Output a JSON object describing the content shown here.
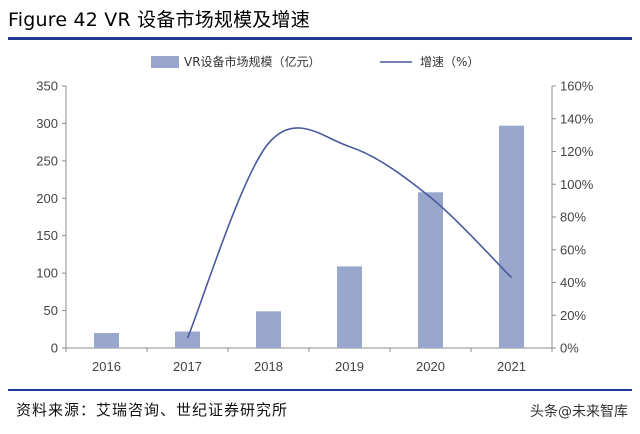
{
  "title": "Figure 42 VR 设备市场规模及增速",
  "source": "资料来源：艾瑞咨询、世纪证券研究所",
  "watermark": "头条@未来智库",
  "colors": {
    "bar": "#99a7cc",
    "line": "#4a5a9c",
    "rule": "#1f3a93",
    "axis": "#8c8c8c"
  },
  "chart_data": {
    "type": "bar+line",
    "categories": [
      "2016",
      "2017",
      "2018",
      "2019",
      "2020",
      "2021"
    ],
    "series": [
      {
        "name": "VR设备市场规模（亿元）",
        "type": "bar",
        "axis": "left",
        "values": [
          20,
          22,
          49,
          109,
          208,
          297
        ]
      },
      {
        "name": "增速（%）",
        "type": "line",
        "axis": "right",
        "smooth": true,
        "x": [
          "2017",
          "2018",
          "2019",
          "2020",
          "2021"
        ],
        "values": [
          6,
          125,
          123,
          92,
          43
        ]
      }
    ],
    "y_left": {
      "min": 0,
      "max": 350,
      "ticks": [
        "0",
        "50",
        "100",
        "150",
        "200",
        "250",
        "300",
        "350"
      ]
    },
    "y_right": {
      "min": 0,
      "max": 160,
      "ticks": [
        "0%",
        "20%",
        "40%",
        "60%",
        "80%",
        "100%",
        "120%",
        "140%",
        "160%"
      ]
    },
    "legend": "top-center",
    "grid": false
  }
}
